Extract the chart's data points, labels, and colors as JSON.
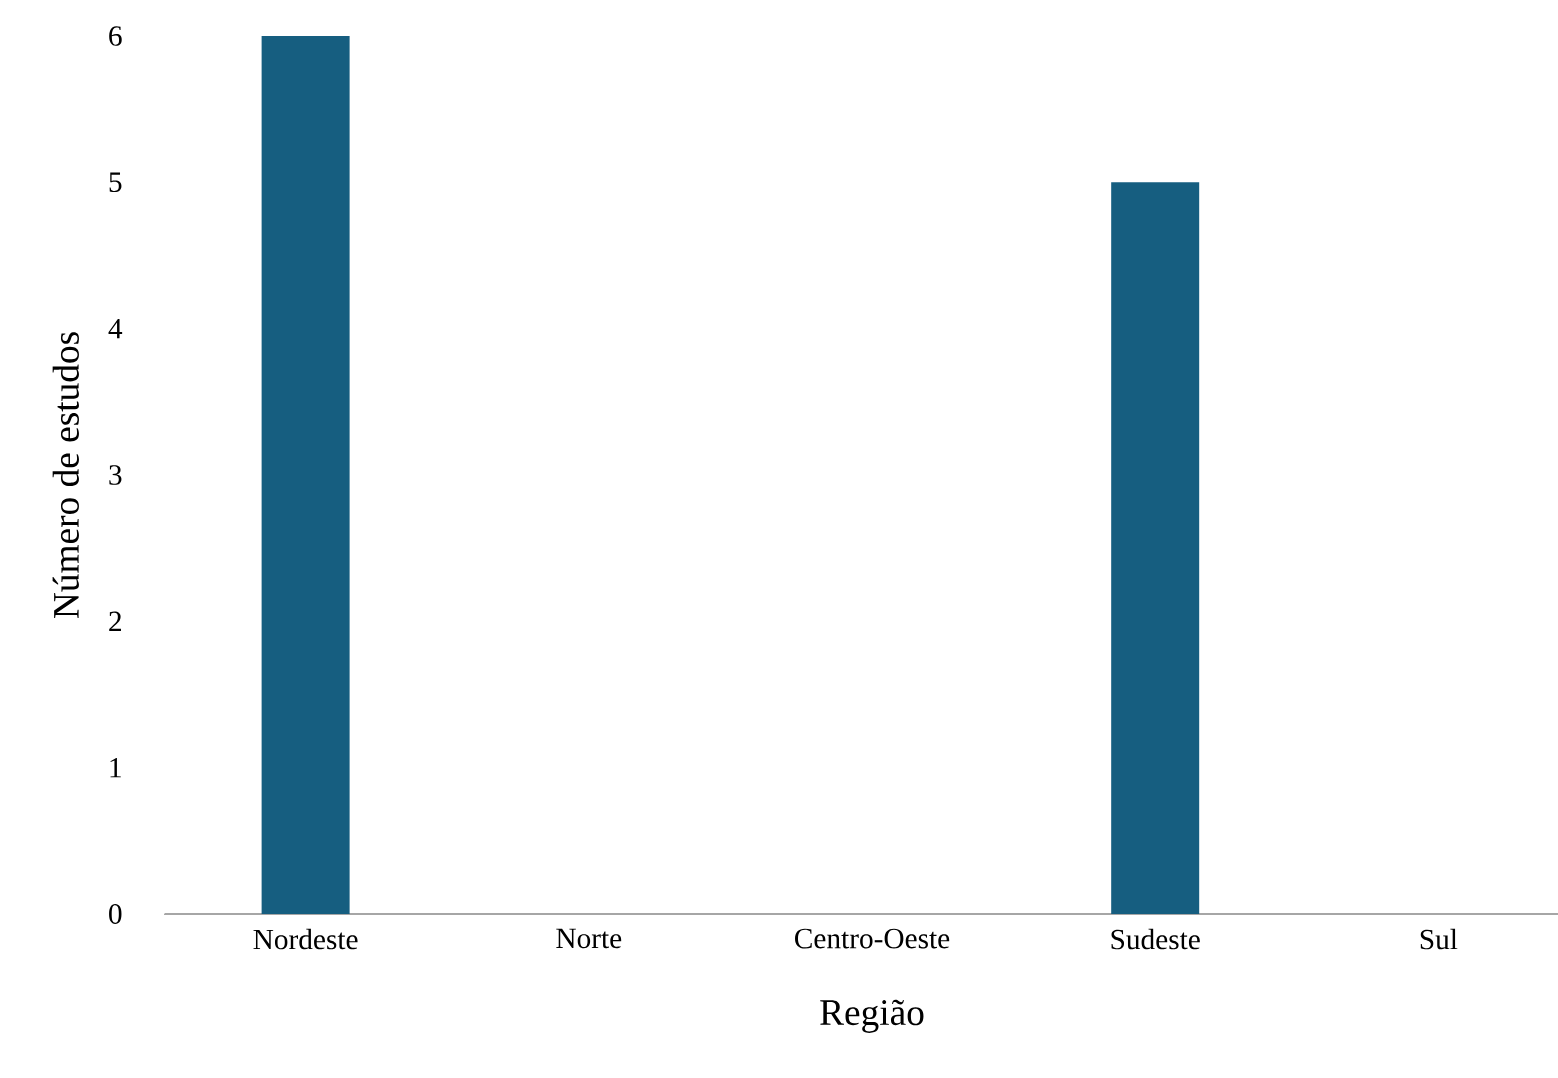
{
  "chart_data": {
    "type": "bar",
    "xlabel": "Região",
    "ylabel": "Número de estudos",
    "categories": [
      "Nordeste",
      "Norte",
      "Centro-Oeste",
      "Sudeste",
      "Sul"
    ],
    "values": [
      6,
      0,
      0,
      5,
      0
    ],
    "color": "#165e80",
    "ylim": [
      0,
      6
    ],
    "yticks": [
      0,
      1,
      2,
      3,
      4,
      5,
      6
    ],
    "grid": false
  }
}
